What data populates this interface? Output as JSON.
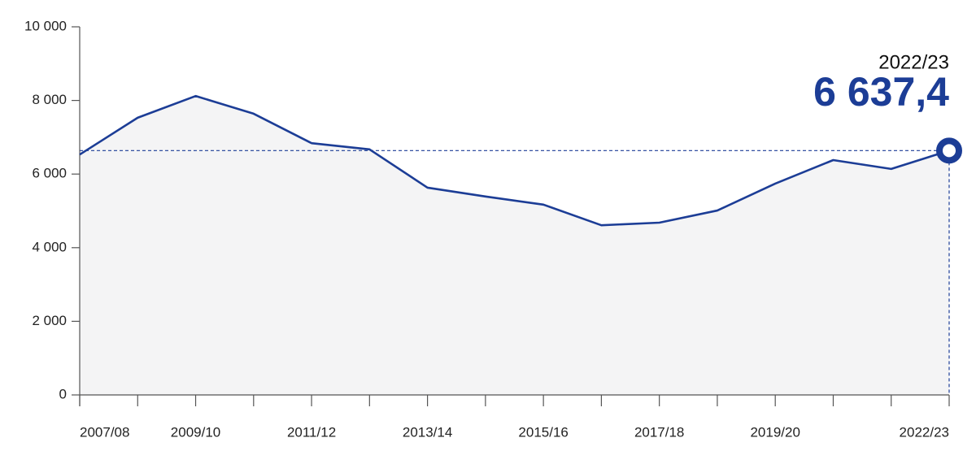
{
  "chart_data": {
    "type": "line",
    "categories": [
      "2007/08",
      null,
      "2009/10",
      null,
      "2011/12",
      null,
      "2013/14",
      null,
      "2015/16",
      null,
      "2017/18",
      null,
      "2019/20",
      null,
      null,
      "2022/23"
    ],
    "values": [
      6530,
      7530,
      8120,
      7640,
      6840,
      6670,
      5630,
      5390,
      5170,
      4610,
      4680,
      5010,
      5740,
      6380,
      6140,
      6637.4
    ],
    "value_labels": [
      null,
      null,
      null,
      null,
      null,
      null,
      null,
      null,
      null,
      null,
      null,
      null,
      null,
      null,
      null,
      "6 637,4"
    ],
    "color": "#1c3d96",
    "area_color": "#f4f4f5",
    "fill_area": true,
    "highlight_index": 15,
    "ylim": [
      0,
      10000
    ],
    "yticks": [
      0,
      {
        "value": 2000,
        "label": "2 000"
      },
      {
        "value": 4000,
        "label": "4 000"
      },
      {
        "value": 6000,
        "label": "6 000"
      },
      {
        "value": 8000,
        "label": "8 000"
      },
      {
        "value": 10000,
        "label": "10 000"
      }
    ],
    "grid": false
  }
}
